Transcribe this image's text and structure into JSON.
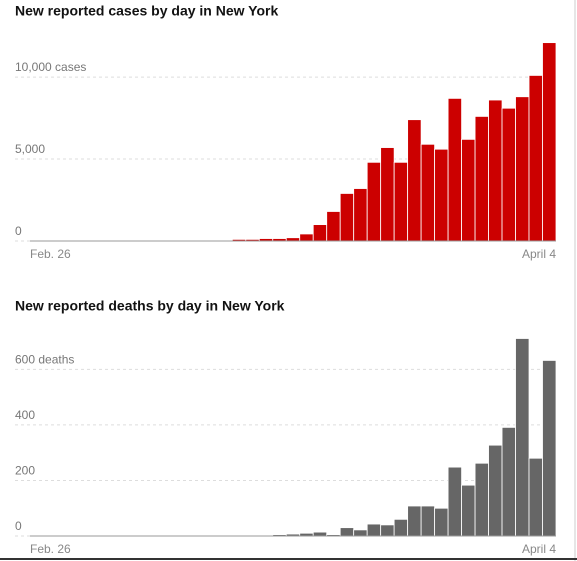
{
  "chart_data": [
    {
      "type": "bar",
      "title": "New reported cases by day in New York",
      "categories": [
        "Feb. 26",
        null,
        null,
        null,
        null,
        null,
        null,
        null,
        null,
        null,
        null,
        null,
        null,
        null,
        null,
        null,
        null,
        null,
        null,
        null,
        null,
        null,
        null,
        null,
        null,
        null,
        null,
        null,
        null,
        null,
        null,
        null,
        null,
        null,
        null,
        null,
        null,
        null,
        "April 4"
      ],
      "values": [
        0,
        0,
        0,
        0,
        0,
        0,
        0,
        0,
        0,
        20,
        40,
        20,
        30,
        50,
        50,
        100,
        100,
        150,
        150,
        200,
        430,
        1000,
        1800,
        2900,
        3200,
        4800,
        5700,
        4800,
        7400,
        5900,
        5600,
        8700,
        6200,
        7600,
        8600,
        8100,
        8800,
        10100,
        12100
      ],
      "color": "#cc0000",
      "ylim": [
        0,
        12200
      ],
      "yticks": [
        0,
        {
          "value": 5000,
          "label": "5,000"
        },
        {
          "value": 10000,
          "label": "10,000 cases"
        }
      ],
      "grid": true
    },
    {
      "type": "bar",
      "title": "New reported deaths by day in New York",
      "categories": [
        "Feb. 26",
        null,
        null,
        null,
        null,
        null,
        null,
        null,
        null,
        null,
        null,
        null,
        null,
        null,
        null,
        null,
        null,
        null,
        null,
        null,
        null,
        null,
        null,
        null,
        null,
        null,
        null,
        null,
        null,
        null,
        null,
        null,
        null,
        null,
        null,
        null,
        null,
        null,
        "April 4"
      ],
      "values": [
        0,
        0,
        0,
        0,
        0,
        0,
        0,
        0,
        0,
        0,
        0,
        0,
        0,
        0,
        0,
        0,
        0,
        3,
        5,
        7,
        10,
        14,
        5,
        30,
        22,
        43,
        40,
        60,
        108,
        108,
        100,
        248,
        183,
        262,
        327,
        391,
        711,
        280,
        632
      ],
      "color": "#666666",
      "ylim": [
        0,
        720
      ],
      "yticks": [
        0,
        200,
        400,
        {
          "value": 600,
          "label": "600 deaths"
        }
      ],
      "grid": true
    }
  ]
}
